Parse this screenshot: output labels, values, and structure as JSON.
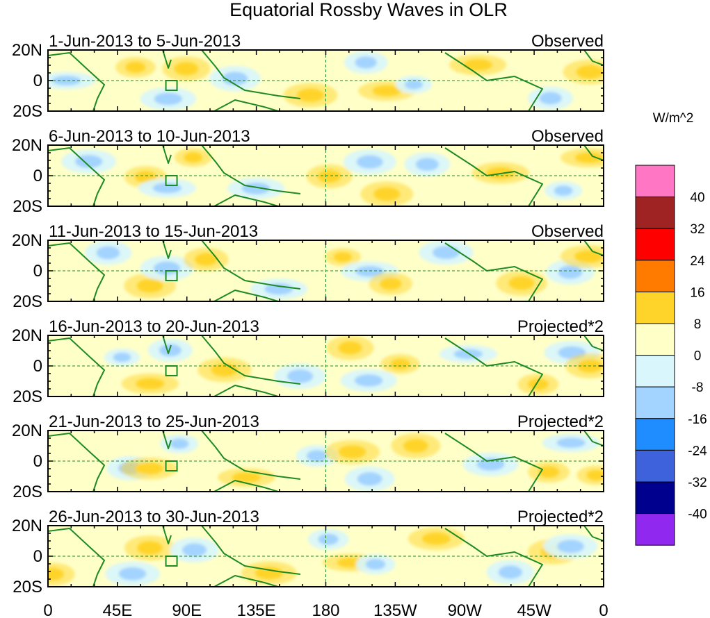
{
  "title": "Equatorial Rossby Waves in OLR",
  "panels": [
    {
      "period": "1-Jun-2013 to 5-Jun-2013",
      "kind": "Observed"
    },
    {
      "period": "6-Jun-2013 to 10-Jun-2013",
      "kind": "Observed"
    },
    {
      "period": "11-Jun-2013 to 15-Jun-2013",
      "kind": "Observed"
    },
    {
      "period": "16-Jun-2013 to 20-Jun-2013",
      "kind": "Projected*2"
    },
    {
      "period": "21-Jun-2013 to 25-Jun-2013",
      "kind": "Projected*2"
    },
    {
      "period": "26-Jun-2013 to 30-Jun-2013",
      "kind": "Projected*2"
    }
  ],
  "lat_ticks": [
    "20N",
    "0",
    "20S"
  ],
  "lon_ticks": [
    "0",
    "45E",
    "90E",
    "135E",
    "180",
    "135W",
    "90W",
    "45W",
    "0"
  ],
  "colorbar": {
    "units": "W/m^2",
    "labels": [
      "40",
      "32",
      "24",
      "16",
      "8",
      "0",
      "-8",
      "-16",
      "-24",
      "-32",
      "-40"
    ],
    "colors": [
      "#ff77c4",
      "#9f2323",
      "#ff0000",
      "#ff7b00",
      "#ffd42a",
      "#ffffc8",
      "#d8f6fc",
      "#a3d3ff",
      "#1f8cff",
      "#3e62db",
      "#00008e",
      "#9128f0"
    ]
  },
  "colors": {
    "land": "#1e8a23",
    "frame": "#000000"
  }
}
